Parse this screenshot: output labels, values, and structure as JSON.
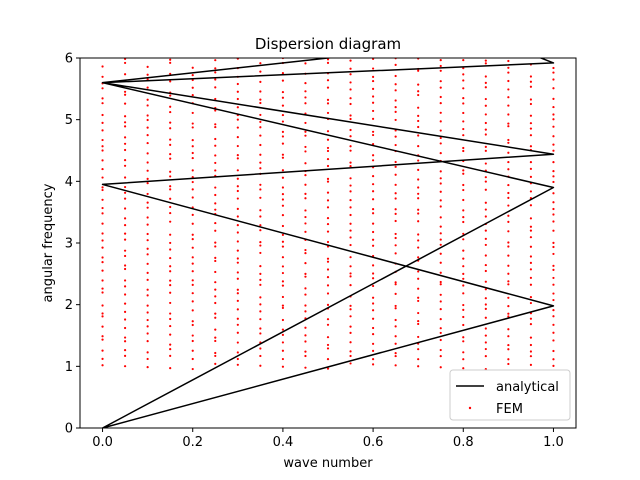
{
  "chart_data": {
    "type": "scatter",
    "title": "Dispersion diagram",
    "xlabel": "wave number",
    "ylabel": "angular frequency",
    "xlim": [
      -0.05,
      1.05
    ],
    "ylim": [
      0,
      6
    ],
    "xticks": [
      "0.0",
      "0.2",
      "0.4",
      "0.6",
      "0.8",
      "1.0"
    ],
    "yticks": [
      "0",
      "1",
      "2",
      "3",
      "4",
      "5",
      "6"
    ],
    "grid": false,
    "legend_position": "lower-right",
    "series": [
      {
        "name": "analytical",
        "kind": "line",
        "color": "#000000",
        "x": [
          0.0,
          1.0,
          0.0,
          1.0,
          0.0,
          1.0,
          0.0,
          1.0,
          0.0,
          1.0,
          0.0,
          1.0
        ],
        "y": [
          0.0,
          1.98,
          3.95,
          4.44,
          5.6,
          6.4,
          8.8,
          5.92,
          5.6,
          3.9,
          0.0,
          0.0
        ]
      },
      {
        "name": "FEM",
        "kind": "scatter",
        "color": "#ff0000",
        "x_values": [
          0.0,
          0.05,
          0.1,
          0.15,
          0.2,
          0.25,
          0.3,
          0.35,
          0.4,
          0.45,
          0.5,
          0.55,
          0.6,
          0.65,
          0.7,
          0.75,
          0.8,
          0.85,
          0.9,
          0.95,
          1.0
        ],
        "y_range_per_x": [
          1.0,
          6.0
        ]
      }
    ],
    "legend_entries": [
      "analytical",
      "FEM"
    ]
  }
}
